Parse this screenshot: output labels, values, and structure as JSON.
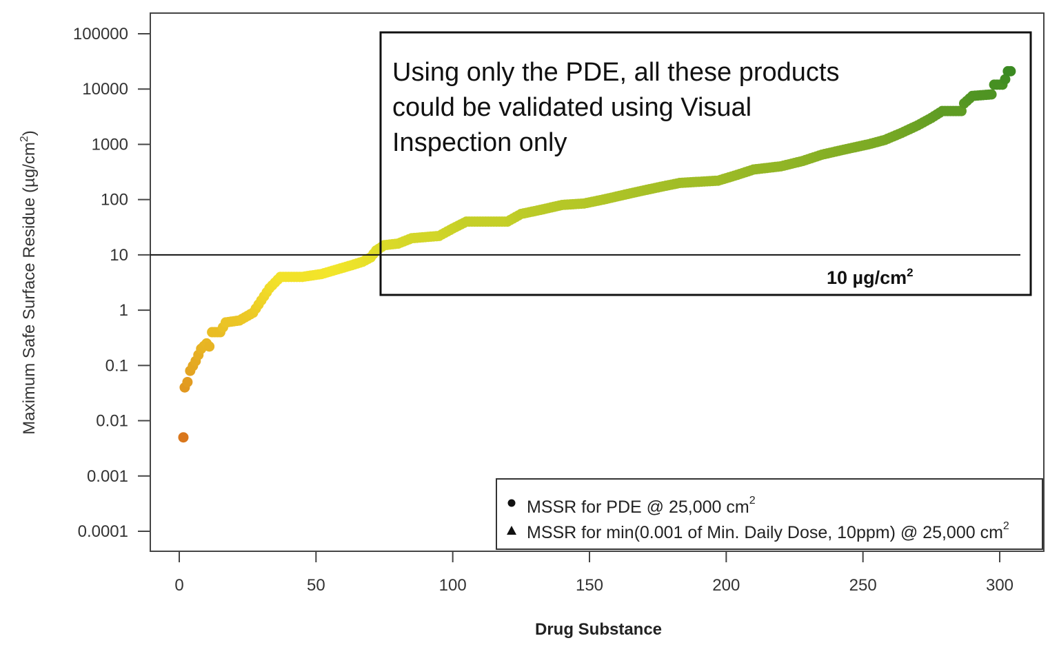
{
  "chart_data": {
    "type": "scatter",
    "xlabel": "Drug Substance",
    "ylabel": "Maximum Safe Surface Residue (µg/cm",
    "ylabel_sup": "2",
    "ylabel_close": ")",
    "xlim": [
      -11,
      317
    ],
    "ylim": [
      4e-05,
      100000
    ],
    "yscale": "log",
    "x_ticks": [
      0,
      50,
      100,
      150,
      200,
      250,
      300
    ],
    "x_tick_labels": [
      "0",
      "50",
      "100",
      "150",
      "200",
      "250",
      "300"
    ],
    "y_ticks": [
      0.0001,
      0.001,
      0.01,
      0.1,
      1,
      10,
      100,
      1000,
      10000,
      100000
    ],
    "y_tick_labels": [
      "0.0001",
      "0.001",
      "0.01",
      "0.1",
      "1",
      "10",
      "100",
      "1000",
      "10000",
      "100000"
    ],
    "reference_line": {
      "y": 10,
      "label": "10 µg/cm",
      "label_sup": "2"
    },
    "annotation_box": {
      "x": [
        73,
        310
      ],
      "y": [
        5,
        100000
      ],
      "lines": [
        "Using only the PDE, all these products",
        "could be validated using Visual",
        "Inspection only"
      ]
    },
    "color_scale": {
      "low": "#d9771c",
      "mid": "#f3e62a",
      "high": "#3b8a22"
    },
    "legend": {
      "position": "bottom-right",
      "entries": [
        {
          "marker": "circle",
          "label": "MSSR for PDE @ 25,000  cm",
          "sup": "2"
        },
        {
          "marker": "triangle",
          "label": "MSSR for min(0.001 of Min. Daily Dose, 10ppm) @ 25,000  cm",
          "sup": "2"
        }
      ]
    },
    "series": [
      {
        "name": "MSSR for PDE @ 25,000  cm²",
        "marker": "circle",
        "x_start": 1,
        "x_end": 304,
        "anchors": [
          [
            1,
            0.005
          ],
          [
            2,
            0.04
          ],
          [
            3,
            0.05
          ],
          [
            4,
            0.08
          ],
          [
            6,
            0.12
          ],
          [
            8,
            0.2
          ],
          [
            10,
            0.25
          ],
          [
            11,
            0.22
          ],
          [
            12,
            0.4
          ],
          [
            15,
            0.4
          ],
          [
            17,
            0.6
          ],
          [
            22,
            0.65
          ],
          [
            27,
            0.9
          ],
          [
            30,
            1.5
          ],
          [
            33,
            2.5
          ],
          [
            37,
            4
          ],
          [
            45,
            4
          ],
          [
            52,
            4.5
          ],
          [
            58,
            5.5
          ],
          [
            63,
            6.5
          ],
          [
            67,
            7.5
          ],
          [
            70,
            9
          ],
          [
            72,
            12
          ],
          [
            75,
            15
          ],
          [
            80,
            16
          ],
          [
            85,
            20
          ],
          [
            95,
            22
          ],
          [
            100,
            30
          ],
          [
            105,
            40
          ],
          [
            120,
            40
          ],
          [
            125,
            55
          ],
          [
            132,
            65
          ],
          [
            140,
            80
          ],
          [
            148,
            85
          ],
          [
            155,
            100
          ],
          [
            162,
            120
          ],
          [
            168,
            140
          ],
          [
            176,
            170
          ],
          [
            183,
            200
          ],
          [
            190,
            210
          ],
          [
            197,
            220
          ],
          [
            204,
            280
          ],
          [
            210,
            350
          ],
          [
            220,
            400
          ],
          [
            228,
            500
          ],
          [
            235,
            650
          ],
          [
            243,
            800
          ],
          [
            252,
            1000
          ],
          [
            258,
            1200
          ],
          [
            264,
            1600
          ],
          [
            270,
            2200
          ],
          [
            275,
            3000
          ],
          [
            279,
            4000
          ],
          [
            286,
            4000
          ],
          [
            287,
            5500
          ],
          [
            290,
            7500
          ],
          [
            297,
            8000
          ],
          [
            298,
            12000
          ],
          [
            301,
            12000
          ],
          [
            302,
            15000
          ],
          [
            303,
            21000
          ],
          [
            304,
            21000
          ]
        ]
      }
    ]
  }
}
